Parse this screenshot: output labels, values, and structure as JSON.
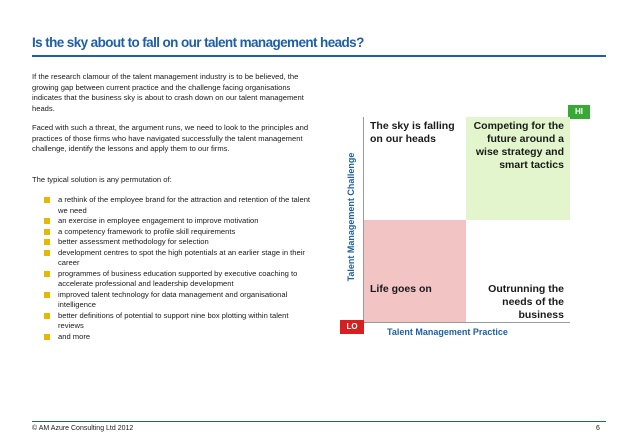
{
  "slide": {
    "title": "Is the sky about to fall on our talent management heads?",
    "paragraphs": [
      "If the research clamour of the talent management industry is to be believed, the growing gap between current practice and the challenge facing organisations indicates that the business sky is about to crash down on our talent management heads.",
      "Faced with such a threat, the argument runs, we need to look to the principles and practices of those firms who have navigated successfully the talent management challenge, identify the lessons and apply them to our firms.",
      "The typical solution is any permutation of:"
    ],
    "bullets": [
      "a rethink of the employee brand for the attraction and retention of the talent we need",
      "an exercise in employee engagement to improve motivation",
      "a competency framework to profile skill requirements",
      "better assessment methodology for selection",
      "development centres to spot the high potentials at an earlier stage in their career",
      "programmes of business education supported by executive coaching to accelerate professional and leadership development",
      "improved talent technology for data management and organisational intelligence",
      "better definitions of potential to support nine box plotting within talent reviews",
      "and more"
    ],
    "bullet_color": "#e8b800"
  },
  "matrix": {
    "y_label": "Talent Management Challenge",
    "x_label": "Talent Management Practice",
    "hi_label": "HI",
    "lo_label": "LO",
    "quadrants": {
      "top_left": "The sky is falling on our heads",
      "top_right": "Competing for the future around a wise strategy and smart tactics",
      "bottom_left": "Life goes on",
      "bottom_right": "Outrunning the needs of the business"
    },
    "colors": {
      "accent": "#1f5fa8",
      "top_right_fill": "#e2f5cc",
      "bottom_left_fill": "#f2c4c4",
      "hi_badge": "#39a935",
      "lo_badge": "#d42020"
    }
  },
  "footer": {
    "copyright": "© AM Azure Consulting Ltd 2012",
    "page_number": "6"
  }
}
